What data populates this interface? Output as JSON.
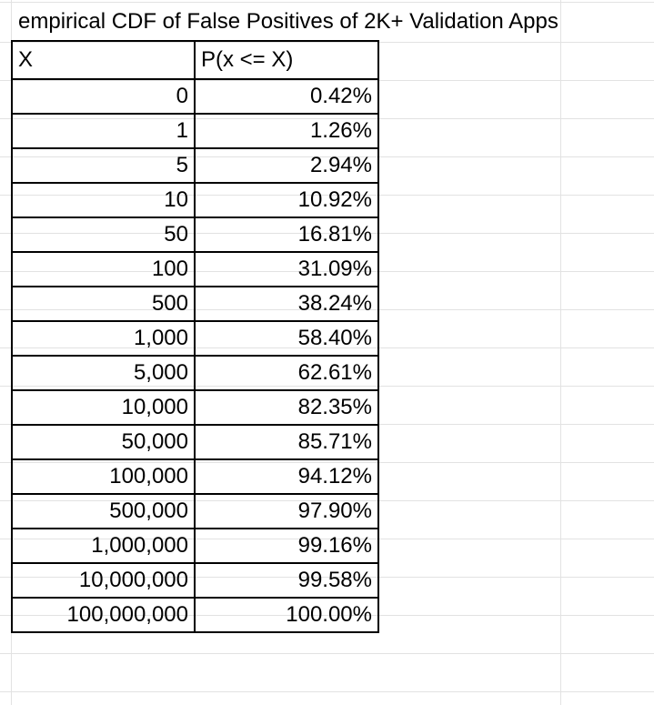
{
  "title": "empirical CDF of False Positives of 2K+ Validation Apps",
  "table": {
    "headers": [
      "X",
      "P(x <= X)"
    ],
    "rows": [
      {
        "x": "0",
        "p": "0.42%"
      },
      {
        "x": "1",
        "p": "1.26%"
      },
      {
        "x": "5",
        "p": "2.94%"
      },
      {
        "x": "10",
        "p": "10.92%"
      },
      {
        "x": "50",
        "p": "16.81%"
      },
      {
        "x": "100",
        "p": "31.09%"
      },
      {
        "x": "500",
        "p": "38.24%"
      },
      {
        "x": "1,000",
        "p": "58.40%"
      },
      {
        "x": "5,000",
        "p": "62.61%"
      },
      {
        "x": "10,000",
        "p": "82.35%"
      },
      {
        "x": "50,000",
        "p": "85.71%"
      },
      {
        "x": "100,000",
        "p": "94.12%"
      },
      {
        "x": "500,000",
        "p": "97.90%"
      },
      {
        "x": "1,000,000",
        "p": "99.16%"
      },
      {
        "x": "10,000,000",
        "p": "99.58%"
      },
      {
        "x": "100,000,000",
        "p": "100.00%"
      }
    ]
  }
}
